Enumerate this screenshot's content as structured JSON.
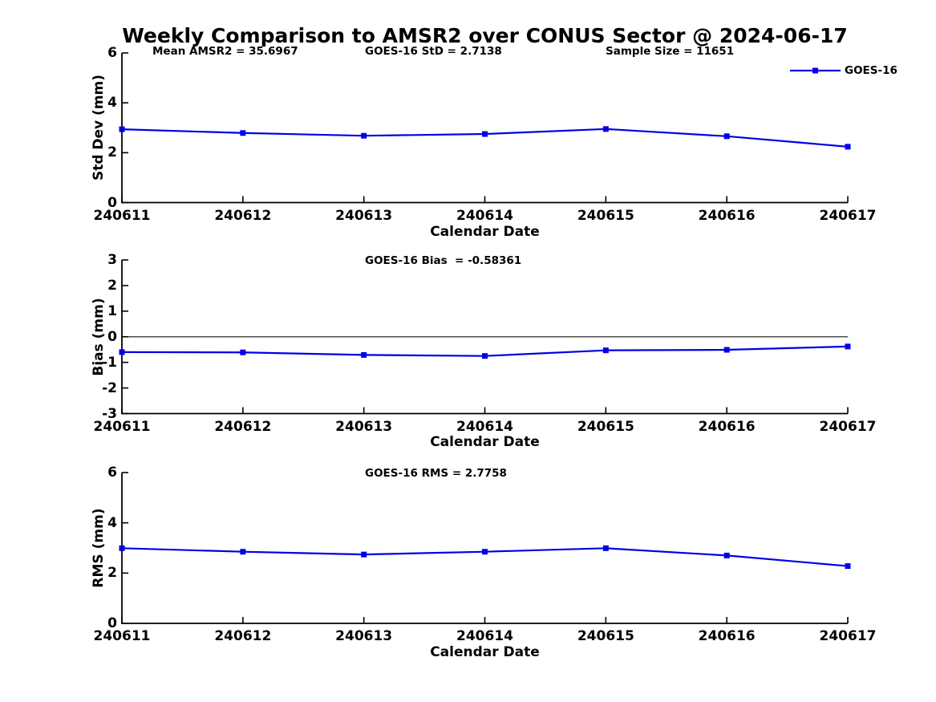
{
  "figure_title": "Weekly Comparison to AMSR2 over CONUS Sector @ 2024-06-17",
  "colors": {
    "series": "#0000E6",
    "axis": "#000000",
    "zero_line": "#4d4d4d",
    "text": "#000000",
    "background": "#ffffff"
  },
  "legend": {
    "position": "top-right",
    "entries": [
      {
        "label": "GOES-16",
        "color": "#0000E6",
        "marker": "square"
      }
    ]
  },
  "categories": [
    "240611",
    "240612",
    "240613",
    "240614",
    "240615",
    "240616",
    "240617"
  ],
  "chart_data": [
    {
      "type": "line",
      "name": "std-dev",
      "ylabel": "Std Dev (mm)",
      "xlabel": "Calendar Date",
      "ylim": [
        0,
        6
      ],
      "yticks": [
        "0",
        "2",
        "4",
        "6"
      ],
      "grid": false,
      "categories": [
        "240611",
        "240612",
        "240613",
        "240614",
        "240615",
        "240616",
        "240617"
      ],
      "series": [
        {
          "name": "GOES-16",
          "values": [
            2.94,
            2.79,
            2.68,
            2.75,
            2.95,
            2.66,
            2.24
          ]
        }
      ],
      "annotations": [
        "Mean AMSR2 = 35.6967",
        "GOES-16 StD = 2.7138",
        "Sample Size = 11651"
      ]
    },
    {
      "type": "line",
      "name": "bias",
      "ylabel": "Bias (mm)",
      "xlabel": "Calendar Date",
      "ylim": [
        -3,
        3
      ],
      "yticks": [
        "-3",
        "-2",
        "-1",
        "0",
        "1",
        "2",
        "3"
      ],
      "zero_line": true,
      "grid": false,
      "categories": [
        "240611",
        "240612",
        "240613",
        "240614",
        "240615",
        "240616",
        "240617"
      ],
      "series": [
        {
          "name": "GOES-16",
          "values": [
            -0.6,
            -0.61,
            -0.71,
            -0.75,
            -0.53,
            -0.51,
            -0.38
          ]
        }
      ],
      "annotations": [
        "GOES-16 Bias  = -0.58361"
      ]
    },
    {
      "type": "line",
      "name": "rms",
      "ylabel": "RMS (mm)",
      "xlabel": "Calendar Date",
      "ylim": [
        0,
        6
      ],
      "yticks": [
        "0",
        "2",
        "4",
        "6"
      ],
      "grid": false,
      "categories": [
        "240611",
        "240612",
        "240613",
        "240614",
        "240615",
        "240616",
        "240617"
      ],
      "series": [
        {
          "name": "GOES-16",
          "values": [
            2.99,
            2.85,
            2.74,
            2.85,
            2.99,
            2.7,
            2.28
          ]
        }
      ],
      "annotations": [
        "GOES-16 RMS = 2.7758"
      ]
    }
  ]
}
